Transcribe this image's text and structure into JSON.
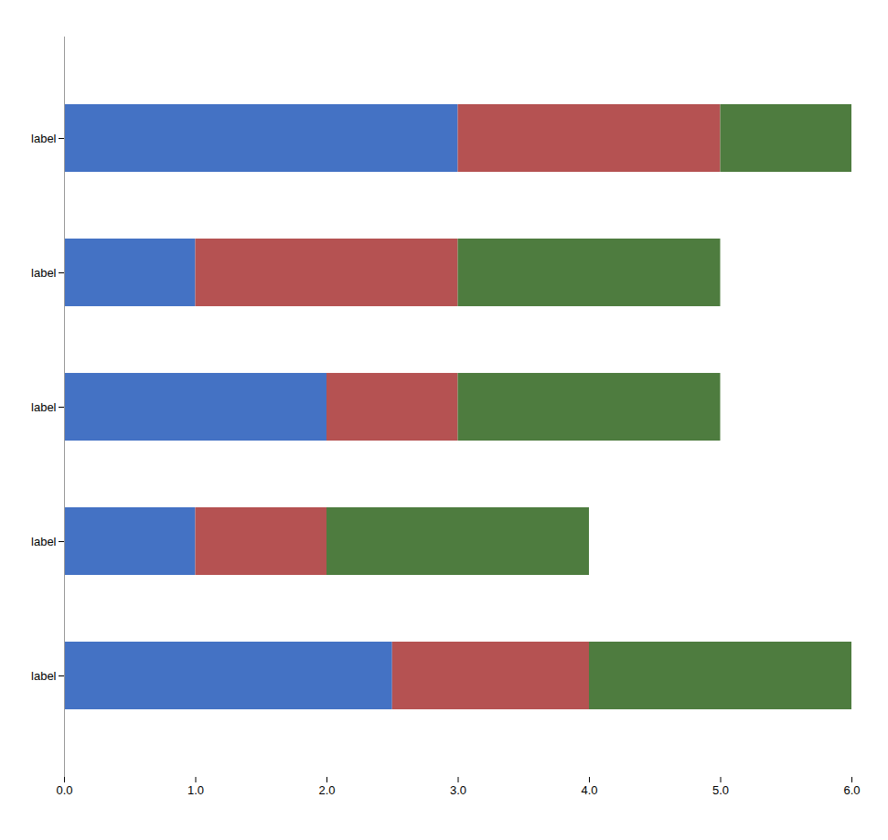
{
  "chart_data": {
    "type": "bar",
    "orientation": "horizontal",
    "stacked": true,
    "categories": [
      "label",
      "label",
      "label",
      "label",
      "label"
    ],
    "series": [
      {
        "color": "#4472c4",
        "values": [
          3.0,
          1.0,
          2.0,
          1.0,
          2.5
        ]
      },
      {
        "color": "#b55252",
        "values": [
          2.0,
          2.0,
          1.0,
          1.0,
          1.5
        ]
      },
      {
        "color": "#4e7c3f",
        "values": [
          1.0,
          2.0,
          2.0,
          2.0,
          2.0
        ]
      }
    ],
    "xlim": [
      0,
      6
    ],
    "xticks": [
      0,
      1,
      2,
      3,
      4,
      5,
      6
    ],
    "grid": false
  }
}
